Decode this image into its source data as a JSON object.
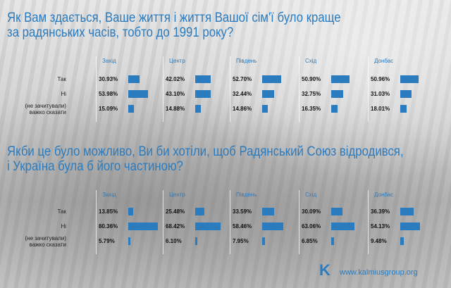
{
  "chart_data": [
    {
      "type": "bar",
      "title": [
        "Як Вам здається, Ваше життя і життя Вашої сім'ї було краще",
        "за радянських часів, тобто до 1991 року?"
      ],
      "regions": [
        "Захід",
        "Центр",
        "Південь",
        "Схід",
        "Донбас"
      ],
      "categories": [
        "Так",
        "Ні",
        "(не зачитували) важко сказати"
      ],
      "unit": "%",
      "values": [
        [
          30.93,
          53.98,
          15.09
        ],
        [
          42.02,
          43.1,
          14.88
        ],
        [
          52.7,
          32.44,
          14.86
        ],
        [
          50.9,
          32.75,
          16.35
        ],
        [
          50.96,
          31.03,
          18.01
        ]
      ],
      "value_labels": [
        [
          "30.93%",
          "53.98%",
          "15.09%"
        ],
        [
          "42.02%",
          "43.10%",
          "14.88%"
        ],
        [
          "52.70%",
          "32.44%",
          "14.86%"
        ],
        [
          "50.90%",
          "32.75%",
          "16.35%"
        ],
        [
          "50.96%",
          "31.03%",
          "18.01%"
        ]
      ]
    },
    {
      "type": "bar",
      "title": [
        "Якби це було можливо, Ви би хотіли, щоб Радянський Союз відродився,",
        "і Україна була б його частиною?"
      ],
      "regions": [
        "Захід",
        "Центр",
        "Південь",
        "Схід",
        "Донбас"
      ],
      "categories": [
        "Так",
        "Ні",
        "(не зачитували) важко сказати"
      ],
      "unit": "%",
      "values": [
        [
          13.85,
          80.36,
          5.79
        ],
        [
          25.48,
          68.42,
          6.1
        ],
        [
          33.59,
          58.46,
          7.95
        ],
        [
          30.09,
          63.06,
          6.85
        ],
        [
          36.39,
          54.13,
          9.48
        ]
      ],
      "value_labels": [
        [
          "13.85%",
          "80.36%",
          "5.79%"
        ],
        [
          "25.48%",
          "68.42%",
          "6.10%"
        ],
        [
          "33.59%",
          "58.46%",
          "7.95%"
        ],
        [
          "30.09%",
          "63.06%",
          "6.85%"
        ],
        [
          "36.39%",
          "54.13%",
          "9.48%"
        ]
      ]
    }
  ],
  "labels": {
    "yes": "Так",
    "no": "Ні",
    "hard_line1": "(не зачитували)",
    "hard_line2": "важко сказати"
  },
  "footer": {
    "logo": "K",
    "site": "www.kalmiusgroup.org"
  },
  "colors": {
    "accent": "#2b7bbf",
    "bar": "#2b7bbf"
  }
}
